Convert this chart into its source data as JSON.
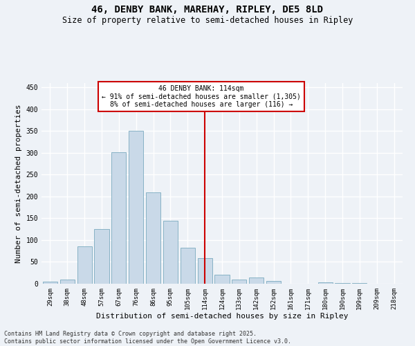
{
  "title1": "46, DENBY BANK, MAREHAY, RIPLEY, DE5 8LD",
  "title2": "Size of property relative to semi-detached houses in Ripley",
  "xlabel": "Distribution of semi-detached houses by size in Ripley",
  "ylabel": "Number of semi-detached properties",
  "categories": [
    "29sqm",
    "38sqm",
    "48sqm",
    "57sqm",
    "67sqm",
    "76sqm",
    "86sqm",
    "95sqm",
    "105sqm",
    "114sqm",
    "124sqm",
    "133sqm",
    "142sqm",
    "152sqm",
    "161sqm",
    "171sqm",
    "180sqm",
    "190sqm",
    "199sqm",
    "209sqm",
    "218sqm"
  ],
  "values": [
    5,
    10,
    85,
    125,
    302,
    350,
    210,
    145,
    83,
    58,
    20,
    10,
    14,
    6,
    0,
    0,
    3,
    2,
    1,
    0,
    0
  ],
  "bar_color": "#c9d9e8",
  "bar_edge_color": "#7aaabf",
  "vline_x_index": 9,
  "vline_color": "#cc0000",
  "annotation_title": "46 DENBY BANK: 114sqm",
  "annotation_line1": "← 91% of semi-detached houses are smaller (1,305)",
  "annotation_line2": "8% of semi-detached houses are larger (116) →",
  "annotation_box_color": "#cc0000",
  "ylim": [
    0,
    460
  ],
  "yticks": [
    0,
    50,
    100,
    150,
    200,
    250,
    300,
    350,
    400,
    450
  ],
  "footer_line1": "Contains HM Land Registry data © Crown copyright and database right 2025.",
  "footer_line2": "Contains public sector information licensed under the Open Government Licence v3.0.",
  "bg_color": "#eef2f7",
  "grid_color": "#ffffff",
  "title_fontsize": 10,
  "subtitle_fontsize": 8.5,
  "tick_fontsize": 6.5,
  "axis_label_fontsize": 8,
  "footer_fontsize": 6,
  "annot_fontsize": 7
}
